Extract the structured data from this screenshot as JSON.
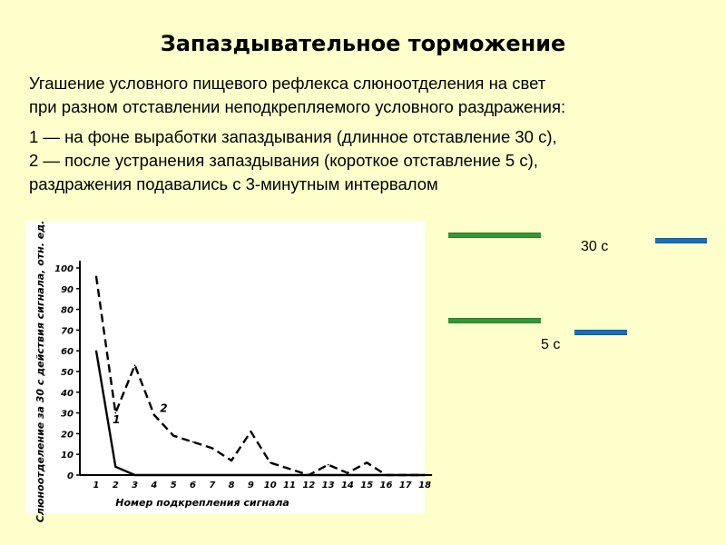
{
  "title": "Запаздывательное торможение",
  "paragraph1": {
    "line1": "Угашение условного пищевого рефлекса слюноотделения на свет",
    "line2": "при разном отставлении неподкрепляемого условного раздражения:"
  },
  "paragraph2": {
    "line1": "1 — на фоне выработки запаздывания (длинное отставление 30 с),",
    "line2": "2 — после устранения запаздывания (короткое отставление 5 с),",
    "line3": "раздражения подавались с 3-минутным интервалом"
  },
  "diagram": {
    "label_long": "30 с",
    "label_short": "5 с"
  },
  "chart_data": {
    "type": "line",
    "x": [
      1,
      2,
      3,
      4,
      5,
      6,
      7,
      8,
      9,
      10,
      11,
      12,
      13,
      14,
      15,
      16,
      17,
      18
    ],
    "xlabel": "Номер подкрепления сигнала",
    "ylabel": "Слюноотделение за 30 с действия сигнала, отн. ед.",
    "ylim": [
      0,
      100
    ],
    "yticks": [
      0,
      10,
      20,
      30,
      40,
      50,
      60,
      70,
      80,
      90,
      100
    ],
    "xticks": [
      "1",
      "2",
      "3",
      "4",
      "5",
      "6",
      "7",
      "8",
      "9",
      "10",
      "11",
      "12",
      "13",
      "14",
      "15",
      "16",
      "17",
      "18"
    ],
    "series": [
      {
        "name": "1",
        "style": "solid",
        "x": [
          1,
          2,
          3,
          4,
          5,
          6,
          7,
          8,
          9,
          10,
          11,
          12,
          13,
          14,
          15,
          16,
          17,
          18
        ],
        "values": [
          60,
          4,
          0,
          0,
          0,
          0,
          0,
          0,
          0,
          0,
          0,
          0,
          0,
          0,
          0,
          0,
          0,
          0
        ]
      },
      {
        "name": "2",
        "style": "dashed",
        "x": [
          1,
          2,
          3,
          4,
          5,
          6,
          7,
          8,
          9,
          10,
          11,
          12,
          13,
          14,
          15,
          16,
          17,
          18
        ],
        "values": [
          96,
          30,
          53,
          29,
          19,
          16,
          13,
          7,
          21,
          6,
          3,
          0,
          5,
          1,
          6,
          0,
          0,
          0
        ]
      }
    ]
  }
}
